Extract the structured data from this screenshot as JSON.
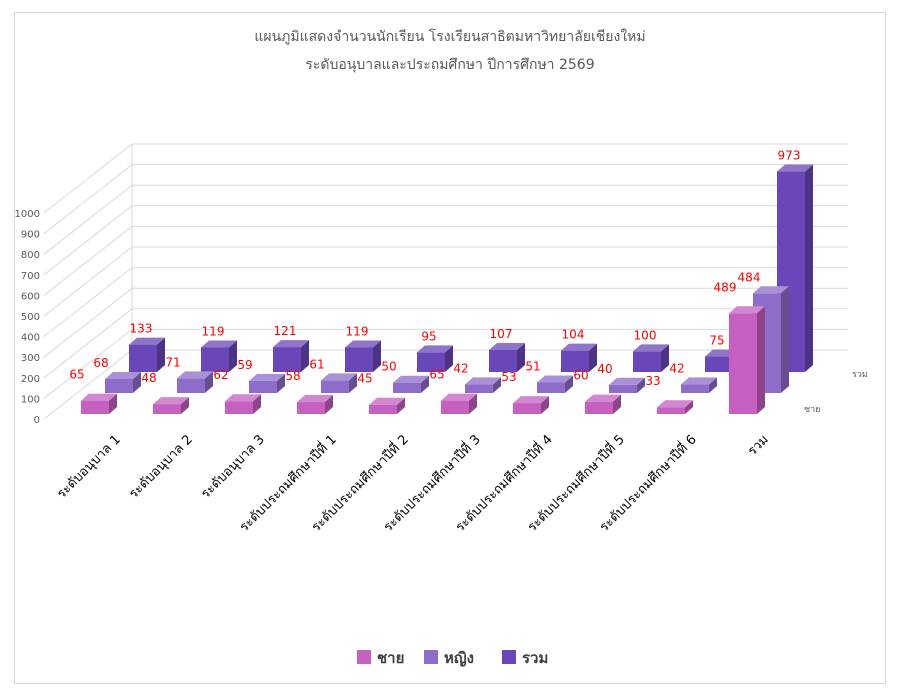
{
  "chart_data": {
    "type": "bar",
    "title": "แผนภูมิแสดงจำนวนนักเรียน โรงเรียนสาธิตมหาวิทยาลัยเชียงใหม่",
    "subtitle": "ระดับอนุบาลและประถมศึกษา ปีการศึกษา 2569",
    "categories": [
      "ระดับอนุบาล 1",
      "ระดับอนุบาล 2",
      "ระดับอนุบาล 3",
      "ระดับประถมศึกษาปีที่ 1",
      "ระดับประถมศึกษาปีที่ 2",
      "ระดับประถมศึกษาปีที่ 3",
      "ระดับประถมศึกษาปีที่ 4",
      "ระดับประถมศึกษาปีที่ 5",
      "ระดับประถมศึกษาปีที่ 6",
      "รวม"
    ],
    "series": [
      {
        "name": "ชาย",
        "values": [
          65,
          48,
          62,
          58,
          45,
          65,
          53,
          60,
          33,
          489
        ]
      },
      {
        "name": "หญิง",
        "values": [
          68,
          71,
          59,
          61,
          50,
          42,
          51,
          40,
          42,
          484
        ]
      },
      {
        "name": "รวม",
        "values": [
          133,
          119,
          121,
          119,
          95,
          107,
          104,
          100,
          75,
          973
        ]
      }
    ],
    "yticks": [
      "0",
      "100",
      "200",
      "300",
      "400",
      "500",
      "600",
      "700",
      "800",
      "900",
      "1000"
    ],
    "ylim": [
      0,
      1000
    ],
    "depth_labels": [
      "ชาย",
      "รวม"
    ],
    "grid": true,
    "legend_position": "bottom",
    "view": "3d-column",
    "colors": {
      "ชาย": "#c55fc0",
      "หญิง": "#8e6cc9",
      "รวม": "#6a47b8",
      "data_label": "#ff0000"
    }
  }
}
